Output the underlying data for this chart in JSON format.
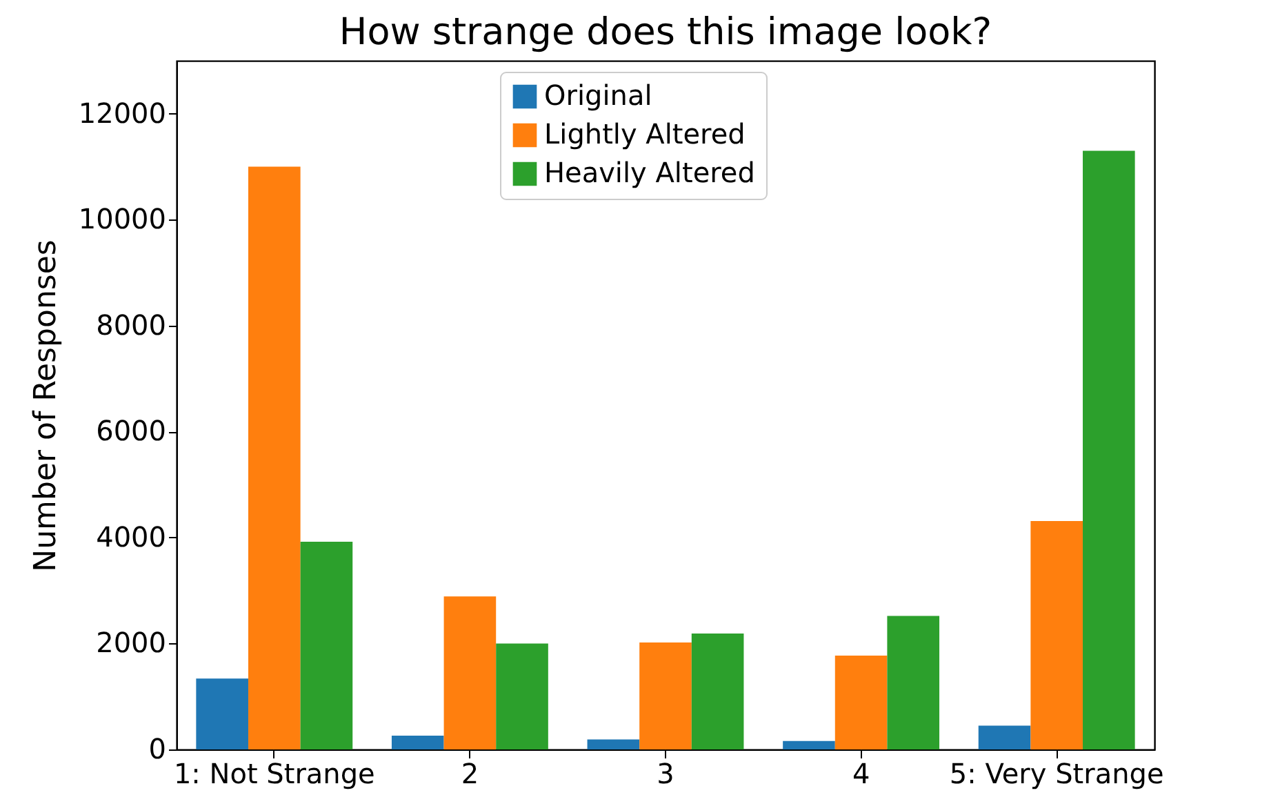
{
  "chart_data": {
    "type": "bar",
    "title": "How strange does this image look?",
    "ylabel": "Number of Responses",
    "categories": [
      "1: Not Strange",
      "2",
      "3",
      "4",
      "5: Very Strange"
    ],
    "series": [
      {
        "name": "Original",
        "color": "#1f77b4",
        "values": [
          1340,
          260,
          190,
          160,
          450
        ]
      },
      {
        "name": "Lightly Altered",
        "color": "#ff7f0e",
        "values": [
          11000,
          2890,
          2020,
          1770,
          4310
        ]
      },
      {
        "name": "Heavily Altered",
        "color": "#2ca02c",
        "values": [
          3920,
          2000,
          2190,
          2520,
          11300
        ]
      }
    ],
    "ylim": [
      0,
      13000
    ],
    "yticks": [
      0,
      2000,
      4000,
      6000,
      8000,
      10000,
      12000
    ],
    "grid": false,
    "legend": "top"
  }
}
